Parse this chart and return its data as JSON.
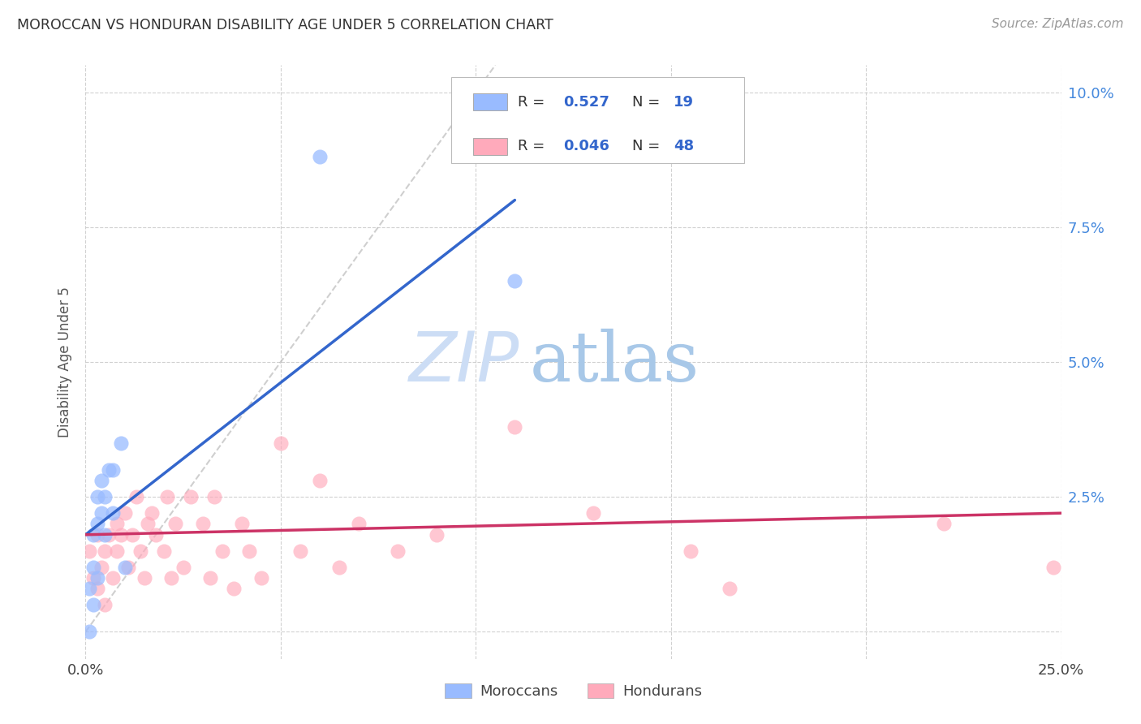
{
  "title": "MOROCCAN VS HONDURAN DISABILITY AGE UNDER 5 CORRELATION CHART",
  "source": "Source: ZipAtlas.com",
  "ylabel": "Disability Age Under 5",
  "xlim": [
    0.0,
    0.25
  ],
  "ylim": [
    -0.005,
    0.105
  ],
  "legend_label1": "Moroccans",
  "legend_label2": "Hondurans",
  "legend_R1": "0.527",
  "legend_N1": "19",
  "legend_R2": "0.046",
  "legend_N2": "48",
  "color_moroccan_fill": "#99bbff",
  "color_honduran_fill": "#ffaabb",
  "color_line_moroccan": "#3366cc",
  "color_line_honduran": "#cc3366",
  "color_diag": "#bbbbbb",
  "moroccan_x": [
    0.001,
    0.001,
    0.002,
    0.002,
    0.002,
    0.003,
    0.003,
    0.003,
    0.004,
    0.004,
    0.005,
    0.005,
    0.006,
    0.007,
    0.007,
    0.009,
    0.01,
    0.06,
    0.11
  ],
  "moroccan_y": [
    0.0,
    0.008,
    0.005,
    0.012,
    0.018,
    0.01,
    0.02,
    0.025,
    0.022,
    0.028,
    0.018,
    0.025,
    0.03,
    0.022,
    0.03,
    0.035,
    0.012,
    0.088,
    0.065
  ],
  "honduran_x": [
    0.001,
    0.002,
    0.003,
    0.003,
    0.004,
    0.005,
    0.005,
    0.006,
    0.007,
    0.008,
    0.008,
    0.009,
    0.01,
    0.011,
    0.012,
    0.013,
    0.014,
    0.015,
    0.016,
    0.017,
    0.018,
    0.02,
    0.021,
    0.022,
    0.023,
    0.025,
    0.027,
    0.03,
    0.032,
    0.033,
    0.035,
    0.038,
    0.04,
    0.042,
    0.045,
    0.05,
    0.055,
    0.06,
    0.065,
    0.07,
    0.08,
    0.09,
    0.11,
    0.13,
    0.155,
    0.165,
    0.22,
    0.248
  ],
  "honduran_y": [
    0.015,
    0.01,
    0.008,
    0.018,
    0.012,
    0.005,
    0.015,
    0.018,
    0.01,
    0.02,
    0.015,
    0.018,
    0.022,
    0.012,
    0.018,
    0.025,
    0.015,
    0.01,
    0.02,
    0.022,
    0.018,
    0.015,
    0.025,
    0.01,
    0.02,
    0.012,
    0.025,
    0.02,
    0.01,
    0.025,
    0.015,
    0.008,
    0.02,
    0.015,
    0.01,
    0.035,
    0.015,
    0.028,
    0.012,
    0.02,
    0.015,
    0.018,
    0.038,
    0.022,
    0.015,
    0.008,
    0.02,
    0.012
  ],
  "blue_line_x": [
    0.0,
    0.11
  ],
  "blue_line_y": [
    0.018,
    0.08
  ],
  "pink_line_x": [
    0.0,
    0.25
  ],
  "pink_line_y": [
    0.018,
    0.022
  ],
  "diag_line_x": [
    0.0,
    0.105
  ],
  "diag_line_y": [
    0.0,
    0.105
  ]
}
